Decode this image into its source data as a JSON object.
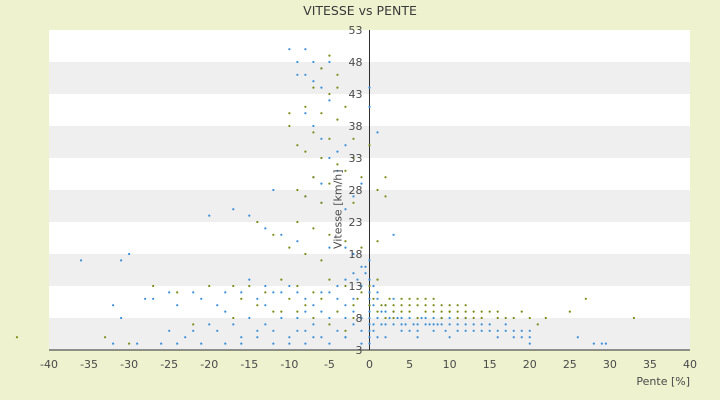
{
  "chart_data": {
    "type": "scatter",
    "title": "VITESSE vs PENTE",
    "xlabel": "Pente [%]",
    "ylabel": "Vitesse [km/h]",
    "xlim": [
      -40,
      40
    ],
    "ylim": [
      3,
      53
    ],
    "x_ticks": [
      "-40",
      "-35",
      "-30",
      "-25",
      "-20",
      "-15",
      "-10",
      "-5",
      "0",
      "5",
      "10",
      "15",
      "20",
      "25",
      "30",
      "35",
      "40"
    ],
    "y_ticks": [
      "3",
      "8",
      "13",
      "18",
      "23",
      "28",
      "33",
      "38",
      "43",
      "48",
      "53"
    ],
    "grid": "horizontal bands",
    "legend": "none",
    "series": [
      {
        "color": "#3a8fd8",
        "marker": "small-dot",
        "points": [
          [
            -10,
            50
          ],
          [
            -8,
            50
          ],
          [
            -9,
            48
          ],
          [
            -7,
            48
          ],
          [
            -6,
            47
          ],
          [
            -9,
            46
          ],
          [
            -8,
            46
          ],
          [
            -7,
            45
          ],
          [
            -5,
            48
          ],
          [
            -6,
            44
          ],
          [
            -5,
            42
          ],
          [
            -8,
            40
          ],
          [
            -7,
            38
          ],
          [
            -6,
            36
          ],
          [
            -4,
            34
          ],
          [
            -5,
            33
          ],
          [
            -3,
            35
          ],
          [
            -7,
            30
          ],
          [
            -6,
            29
          ],
          [
            -4,
            31
          ],
          [
            -12,
            28
          ],
          [
            -8,
            27
          ],
          [
            -6,
            26
          ],
          [
            -3,
            25
          ],
          [
            1,
            37
          ],
          [
            0,
            41
          ],
          [
            0,
            44
          ],
          [
            -1,
            29
          ],
          [
            -2,
            27
          ],
          [
            3,
            21
          ],
          [
            -36,
            17
          ],
          [
            -31,
            17
          ],
          [
            -20,
            24
          ],
          [
            -17,
            25
          ],
          [
            -15,
            24
          ],
          [
            -13,
            22
          ],
          [
            -11,
            21
          ],
          [
            -9,
            20
          ],
          [
            -5,
            19
          ],
          [
            -3,
            19
          ],
          [
            -2,
            18
          ],
          [
            -1,
            16
          ],
          [
            0,
            17
          ],
          [
            -25,
            12
          ],
          [
            -22,
            12
          ],
          [
            -28,
            11
          ],
          [
            -32,
            10
          ],
          [
            -31,
            8
          ],
          [
            -27,
            11
          ],
          [
            -24,
            10
          ],
          [
            -21,
            11
          ],
          [
            -19,
            10
          ],
          [
            -18,
            12
          ],
          [
            -16,
            12
          ],
          [
            -14,
            11
          ],
          [
            -13,
            10
          ],
          [
            -12,
            12
          ],
          [
            -11,
            12
          ],
          [
            -10,
            13
          ],
          [
            -9,
            12
          ],
          [
            -8,
            11
          ],
          [
            -7,
            10
          ],
          [
            -6,
            12
          ],
          [
            -5,
            12
          ],
          [
            -4,
            11
          ],
          [
            -3,
            10
          ],
          [
            -2,
            11
          ],
          [
            -1,
            13
          ],
          [
            0,
            10
          ],
          [
            -18,
            9
          ],
          [
            -15,
            8
          ],
          [
            -13,
            7
          ],
          [
            -11,
            8
          ],
          [
            -9,
            8
          ],
          [
            -7,
            7
          ],
          [
            -5,
            8
          ],
          [
            -3,
            8
          ],
          [
            -2,
            9
          ],
          [
            -1,
            8
          ],
          [
            -22,
            6
          ],
          [
            -19,
            6
          ],
          [
            -16,
            5
          ],
          [
            -14,
            6
          ],
          [
            -12,
            6
          ],
          [
            -10,
            5
          ],
          [
            -8,
            6
          ],
          [
            -6,
            5
          ],
          [
            -4,
            6
          ],
          [
            -3,
            5
          ],
          [
            -2,
            7
          ],
          [
            -1,
            6
          ],
          [
            -32,
            4
          ],
          [
            -29,
            4
          ],
          [
            -26,
            4
          ],
          [
            -24,
            4
          ],
          [
            -21,
            4
          ],
          [
            -18,
            4
          ],
          [
            -16,
            4
          ],
          [
            -14,
            5
          ],
          [
            -12,
            4
          ],
          [
            -10,
            4
          ],
          [
            -8,
            4
          ],
          [
            -7,
            5
          ],
          [
            -5,
            4
          ],
          [
            -3,
            5
          ],
          [
            -1,
            4
          ],
          [
            0,
            5
          ],
          [
            0,
            4
          ],
          [
            0.5,
            6
          ],
          [
            0.5,
            7
          ],
          [
            1,
            8
          ],
          [
            1.5,
            7
          ],
          [
            2,
            7
          ],
          [
            2.5,
            8
          ],
          [
            3,
            7
          ],
          [
            3.5,
            8
          ],
          [
            4,
            7
          ],
          [
            4.5,
            7
          ],
          [
            5,
            8
          ],
          [
            5.5,
            7
          ],
          [
            6,
            7
          ],
          [
            6.5,
            8
          ],
          [
            7,
            7
          ],
          [
            7.5,
            7
          ],
          [
            8,
            8
          ],
          [
            8.5,
            7
          ],
          [
            9,
            7
          ],
          [
            9.5,
            6
          ],
          [
            10,
            7
          ],
          [
            11,
            7
          ],
          [
            12,
            8
          ],
          [
            13,
            7
          ],
          [
            14,
            6
          ],
          [
            15,
            6
          ],
          [
            16,
            6
          ],
          [
            17,
            7
          ],
          [
            18,
            5
          ],
          [
            19,
            6
          ],
          [
            20,
            5
          ],
          [
            20,
            6
          ],
          [
            20,
            4
          ],
          [
            18,
            6
          ],
          [
            16,
            5
          ],
          [
            14,
            7
          ],
          [
            12,
            6
          ],
          [
            10,
            5
          ],
          [
            8,
            6
          ],
          [
            6,
            5
          ],
          [
            4,
            6
          ],
          [
            2,
            5
          ],
          [
            1,
            5
          ],
          [
            2,
            9
          ],
          [
            3,
            9
          ],
          [
            4,
            8
          ],
          [
            5,
            6
          ],
          [
            6,
            6
          ],
          [
            7,
            8
          ],
          [
            8,
            7
          ],
          [
            9,
            8
          ],
          [
            10,
            8
          ],
          [
            11,
            6
          ],
          [
            12,
            7
          ],
          [
            13,
            6
          ],
          [
            15,
            7
          ],
          [
            17,
            6
          ],
          [
            19,
            5
          ],
          [
            26,
            5
          ],
          [
            28,
            4
          ],
          [
            29,
            4
          ],
          [
            29.5,
            4
          ],
          [
            0.5,
            10
          ],
          [
            1,
            11
          ],
          [
            1.5,
            9
          ],
          [
            2,
            10
          ],
          [
            3,
            11
          ],
          [
            1,
            12
          ],
          [
            0.5,
            13
          ],
          [
            0,
            7
          ],
          [
            0,
            8
          ],
          [
            0,
            6
          ],
          [
            0,
            9
          ],
          [
            0,
            11
          ],
          [
            0,
            12
          ],
          [
            0,
            14
          ],
          [
            -0.5,
            15
          ],
          [
            -0.5,
            16
          ],
          [
            -1.5,
            14
          ],
          [
            -2,
            15
          ],
          [
            -3,
            14
          ],
          [
            -4,
            13
          ],
          [
            -30,
            18
          ],
          [
            -15,
            14
          ],
          [
            -13,
            13
          ],
          [
            -20,
            7
          ],
          [
            -23,
            5
          ],
          [
            -25,
            6
          ],
          [
            -17,
            7
          ],
          [
            -9,
            6
          ],
          [
            -8,
            9
          ],
          [
            -6,
            9
          ]
        ]
      },
      {
        "color": "#7c8a16",
        "marker": "small-dot",
        "points": [
          [
            -5,
            49
          ],
          [
            -6,
            47
          ],
          [
            -4,
            46
          ],
          [
            -7,
            44
          ],
          [
            -5,
            43
          ],
          [
            -8,
            41
          ],
          [
            -6,
            40
          ],
          [
            -4,
            39
          ],
          [
            -7,
            37
          ],
          [
            -5,
            36
          ],
          [
            -9,
            35
          ],
          [
            -8,
            34
          ],
          [
            -6,
            33
          ],
          [
            -4,
            32
          ],
          [
            -3,
            31
          ],
          [
            -7,
            30
          ],
          [
            -5,
            29
          ],
          [
            -9,
            28
          ],
          [
            -8,
            27
          ],
          [
            -6,
            26
          ],
          [
            -10,
            38
          ],
          [
            -10,
            40
          ],
          [
            -3,
            41
          ],
          [
            -4,
            44
          ],
          [
            -2,
            36
          ],
          [
            -2,
            33
          ],
          [
            -1,
            30
          ],
          [
            -2,
            26
          ],
          [
            1,
            28
          ],
          [
            2,
            30
          ],
          [
            -9,
            23
          ],
          [
            -7,
            22
          ],
          [
            -5,
            21
          ],
          [
            -3,
            20
          ],
          [
            -1,
            19
          ],
          [
            -14,
            23
          ],
          [
            -12,
            21
          ],
          [
            -10,
            19
          ],
          [
            -8,
            18
          ],
          [
            -6,
            17
          ],
          [
            -15,
            13
          ],
          [
            -13,
            12
          ],
          [
            -11,
            14
          ],
          [
            -9,
            13
          ],
          [
            -7,
            12
          ],
          [
            -5,
            14
          ],
          [
            -3,
            13
          ],
          [
            -1,
            12
          ],
          [
            0,
            13
          ],
          [
            1,
            14
          ],
          [
            -27,
            13
          ],
          [
            -24,
            12
          ],
          [
            -20,
            13
          ],
          [
            -17,
            13
          ],
          [
            -16,
            11
          ],
          [
            -14,
            10
          ],
          [
            -12,
            9
          ],
          [
            -10,
            11
          ],
          [
            -8,
            10
          ],
          [
            -6,
            11
          ],
          [
            -4,
            9
          ],
          [
            -2,
            10
          ],
          [
            0,
            10
          ],
          [
            1,
            9
          ],
          [
            2,
            10
          ],
          [
            3,
            9
          ],
          [
            4,
            10
          ],
          [
            5,
            9
          ],
          [
            6,
            10
          ],
          [
            7,
            9
          ],
          [
            8,
            9
          ],
          [
            9,
            8
          ],
          [
            10,
            9
          ],
          [
            11,
            8
          ],
          [
            12,
            9
          ],
          [
            13,
            8
          ],
          [
            14,
            8
          ],
          [
            15,
            9
          ],
          [
            16,
            8
          ],
          [
            18,
            8
          ],
          [
            20,
            8
          ],
          [
            22,
            8
          ],
          [
            25,
            9
          ],
          [
            27,
            11
          ],
          [
            33,
            8
          ],
          [
            3,
            8
          ],
          [
            4,
            9
          ],
          [
            5,
            10
          ],
          [
            6,
            8
          ],
          [
            7,
            10
          ],
          [
            8,
            10
          ],
          [
            9,
            9
          ],
          [
            10,
            10
          ],
          [
            11,
            9
          ],
          [
            12,
            10
          ],
          [
            13,
            9
          ],
          [
            0.5,
            11
          ],
          [
            1.5,
            10
          ],
          [
            2.5,
            11
          ],
          [
            -1.5,
            11
          ],
          [
            -33,
            5
          ],
          [
            -30,
            4
          ],
          [
            -22,
            7
          ],
          [
            -17,
            8
          ],
          [
            -11,
            9
          ],
          [
            -9,
            9
          ],
          [
            -7,
            8
          ],
          [
            -5,
            7
          ],
          [
            -3,
            6
          ],
          [
            -2,
            8
          ],
          [
            2,
            8
          ],
          [
            3,
            10
          ],
          [
            4,
            11
          ],
          [
            5,
            11
          ],
          [
            6,
            11
          ],
          [
            7,
            11
          ],
          [
            8,
            11
          ],
          [
            9,
            10
          ],
          [
            10,
            9
          ],
          [
            11,
            10
          ],
          [
            12,
            8
          ],
          [
            14,
            9
          ],
          [
            16,
            9
          ],
          [
            17,
            8
          ],
          [
            19,
            9
          ],
          [
            21,
            7
          ],
          [
            -44,
            5
          ],
          [
            2,
            27
          ],
          [
            1,
            20
          ],
          [
            0,
            35
          ]
        ]
      }
    ]
  }
}
